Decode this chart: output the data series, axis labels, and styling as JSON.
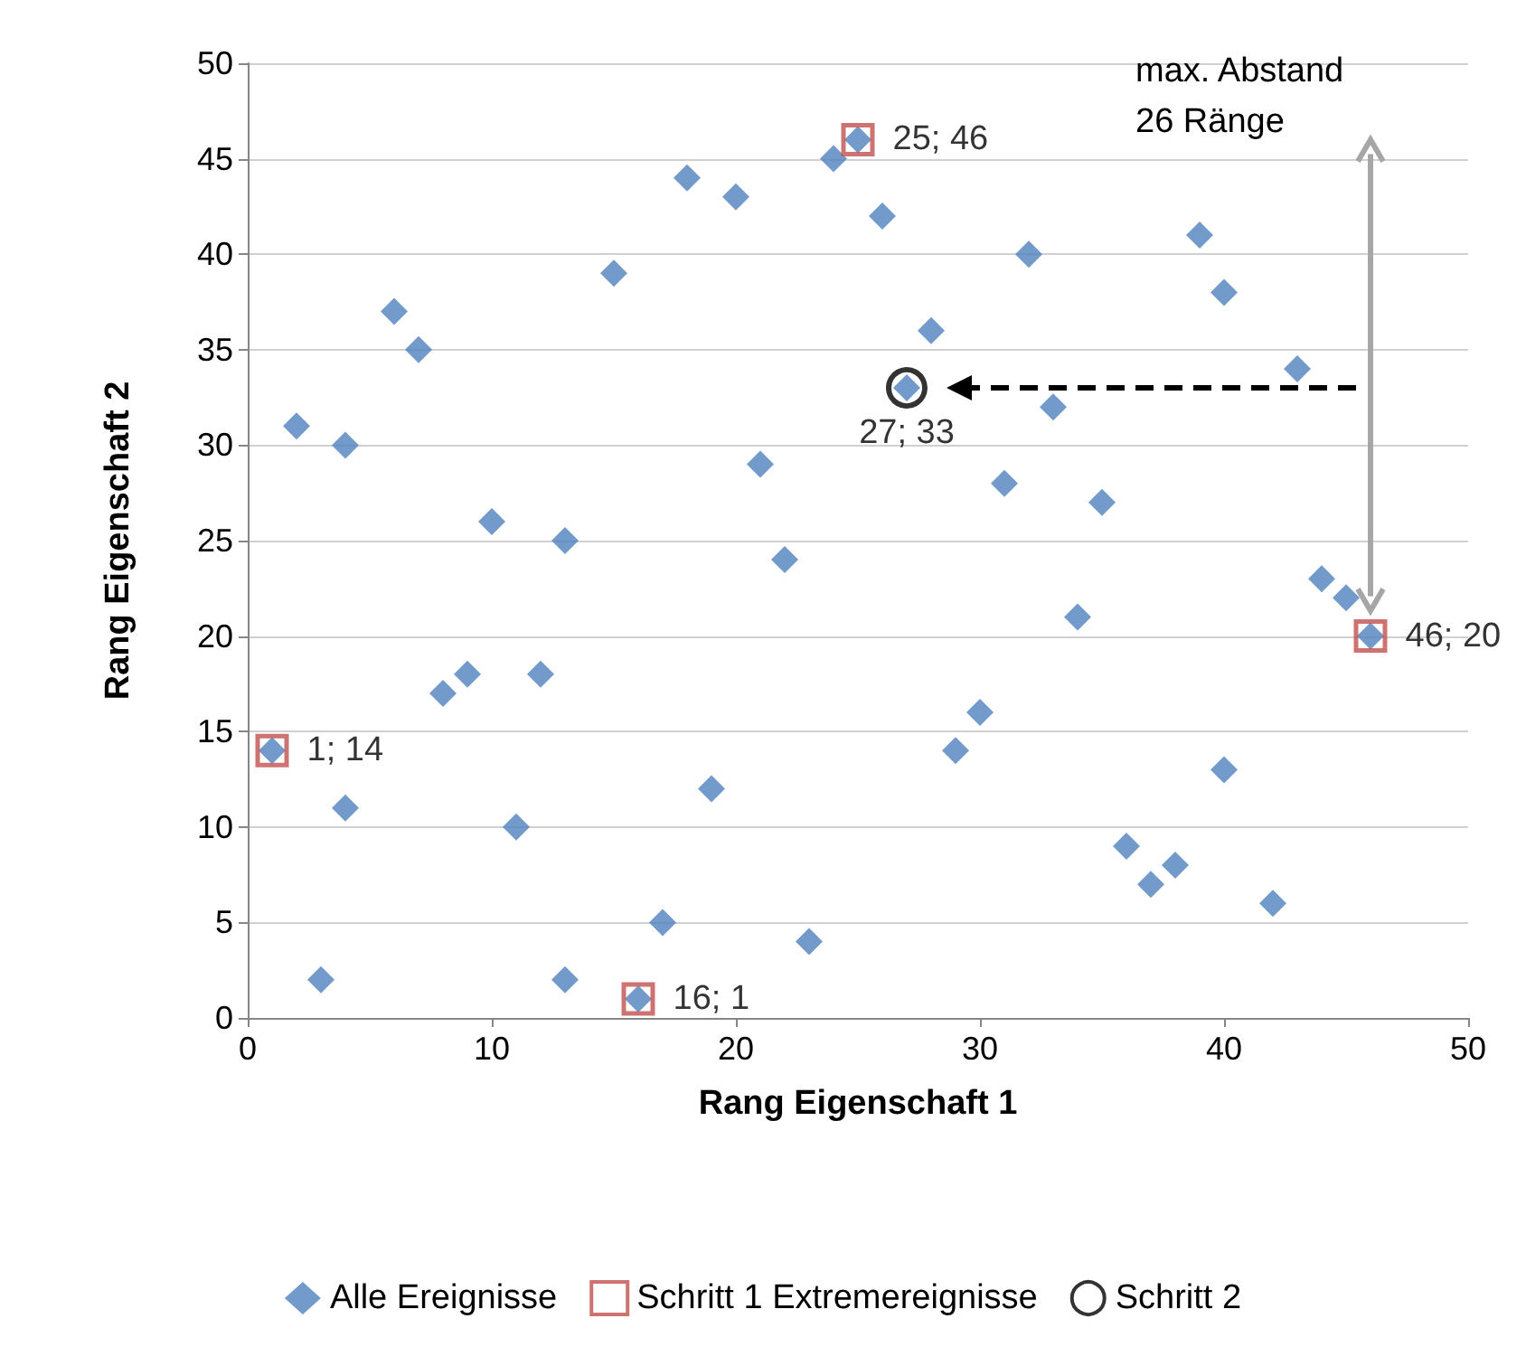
{
  "chart_data": {
    "type": "scatter",
    "xlabel": "Rang Eigenschaft 1",
    "ylabel": "Rang Eigenschaft 2",
    "xlim": [
      0,
      50
    ],
    "xticks": [
      0,
      10,
      20,
      30,
      40,
      50
    ],
    "ylim": [
      0,
      50
    ],
    "yticks": [
      0,
      5,
      10,
      15,
      20,
      25,
      30,
      35,
      40,
      45,
      50
    ],
    "grid": "y",
    "legend": "bottom",
    "annotations": [
      "max. Abstand\n26 Ränge"
    ],
    "series": [
      {
        "name": "Alle Ereignisse",
        "color": "#4f81bd",
        "marker": "diamond",
        "x": [
          1,
          2,
          3,
          4,
          4,
          6,
          7,
          8,
          9,
          10,
          11,
          12,
          13,
          13,
          15,
          16,
          17,
          18,
          19,
          20,
          21,
          22,
          23,
          24,
          25,
          26,
          27,
          28,
          29,
          30,
          31,
          32,
          33,
          34,
          35,
          36,
          37,
          38,
          39,
          40,
          40,
          42,
          43,
          44,
          45,
          46
        ],
        "values": [
          14,
          31,
          2,
          30,
          11,
          37,
          35,
          17,
          18,
          26,
          10,
          18,
          25,
          2,
          39,
          1,
          5,
          44,
          12,
          43,
          29,
          24,
          4,
          45,
          46,
          42,
          33,
          36,
          14,
          16,
          28,
          40,
          32,
          21,
          27,
          9,
          7,
          8,
          41,
          38,
          13,
          6,
          34,
          23,
          22,
          20
        ]
      },
      {
        "name": "Schritt 1 Extremereignisse",
        "color": "#c0504d",
        "marker": "square",
        "x": [
          1,
          16,
          25,
          46
        ],
        "values": [
          14,
          1,
          46,
          20
        ],
        "value_labels": [
          "1; 14",
          "16; 1",
          "25; 46",
          "46; 20"
        ]
      },
      {
        "name": "Schritt 2",
        "color": "#000000",
        "marker": "circle",
        "x": [
          27
        ],
        "values": [
          33
        ],
        "value_labels": [
          "27; 33"
        ]
      }
    ]
  }
}
